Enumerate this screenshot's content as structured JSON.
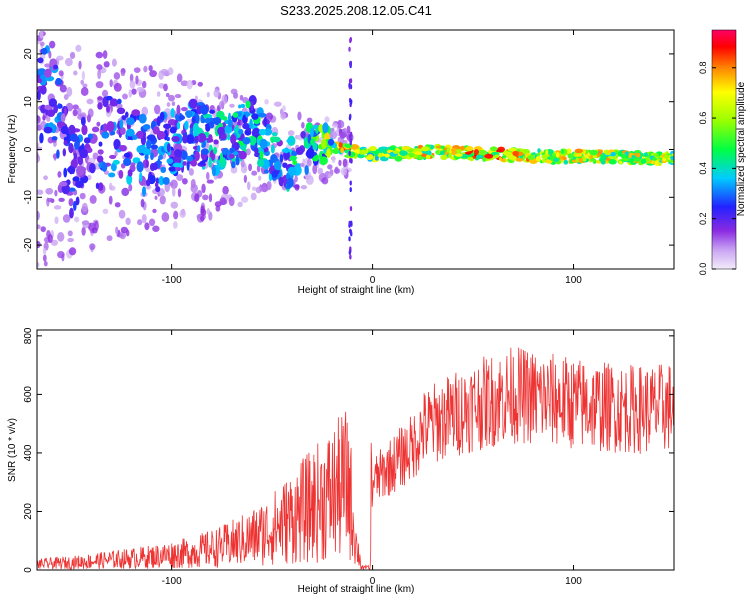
{
  "title": "S233.2025.208.12.05.C41",
  "chart_data": [
    {
      "type": "heatmap",
      "xlabel": "Height of straight line (km)",
      "ylabel": "Frequency (Hz)",
      "xlim": [
        -167,
        150
      ],
      "ylim": [
        -25,
        25
      ],
      "x_ticks": [
        -100,
        0,
        100
      ],
      "y_ticks": [
        -20,
        -10,
        0,
        10,
        20
      ],
      "grid": false,
      "colorbar": {
        "label": "Normalized spectral amplitude",
        "range": [
          0,
          0.95
        ],
        "ticks": [
          0.0,
          0.2,
          0.4,
          0.6,
          0.8
        ]
      },
      "description_points": [
        {
          "x": -160,
          "y": 12,
          "v": 0.35
        },
        {
          "x": -150,
          "y": -5,
          "v": 0.3
        },
        {
          "x": -130,
          "y": 3,
          "v": 0.4
        },
        {
          "x": -110,
          "y": -2,
          "v": 0.35
        },
        {
          "x": -90,
          "y": 4,
          "v": 0.4
        },
        {
          "x": -75,
          "y": 1,
          "v": 0.45
        },
        {
          "x": -60,
          "y": 5,
          "v": 0.5
        },
        {
          "x": -45,
          "y": -4,
          "v": 0.45
        },
        {
          "x": -30,
          "y": 1,
          "v": 0.55
        },
        {
          "x": -15,
          "y": 0,
          "v": 0.95
        },
        {
          "x": 0,
          "y": -1,
          "v": 0.75
        },
        {
          "x": 30,
          "y": -0.5,
          "v": 0.9
        },
        {
          "x": 60,
          "y": -1,
          "v": 0.95
        },
        {
          "x": 90,
          "y": -1.5,
          "v": 0.85
        },
        {
          "x": 120,
          "y": -1.5,
          "v": 0.85
        },
        {
          "x": 145,
          "y": -2,
          "v": 0.8
        }
      ]
    },
    {
      "type": "line",
      "xlabel": "Height of straight line (km)",
      "ylabel": "SNR (10 * v/v)",
      "xlim": [
        -167,
        150
      ],
      "ylim": [
        0,
        820
      ],
      "x_ticks": [
        -100,
        0,
        100
      ],
      "y_ticks": [
        0,
        200,
        400,
        600,
        800
      ],
      "grid": false,
      "series": [
        {
          "color": "#ee3333",
          "x": [
            -167,
            -150,
            -130,
            -110,
            -90,
            -75,
            -60,
            -50,
            -40,
            -30,
            -20,
            -12,
            -8,
            -5,
            0,
            5,
            10,
            15,
            20,
            25,
            30,
            40,
            50,
            60,
            70,
            80,
            90,
            100,
            110,
            120,
            130,
            140,
            150
          ],
          "y": [
            20,
            25,
            35,
            45,
            60,
            80,
            110,
            140,
            180,
            220,
            260,
            300,
            80,
            10,
            300,
            330,
            360,
            390,
            420,
            480,
            500,
            530,
            560,
            580,
            600,
            590,
            580,
            570,
            560,
            555,
            550,
            550,
            560
          ]
        }
      ]
    }
  ]
}
